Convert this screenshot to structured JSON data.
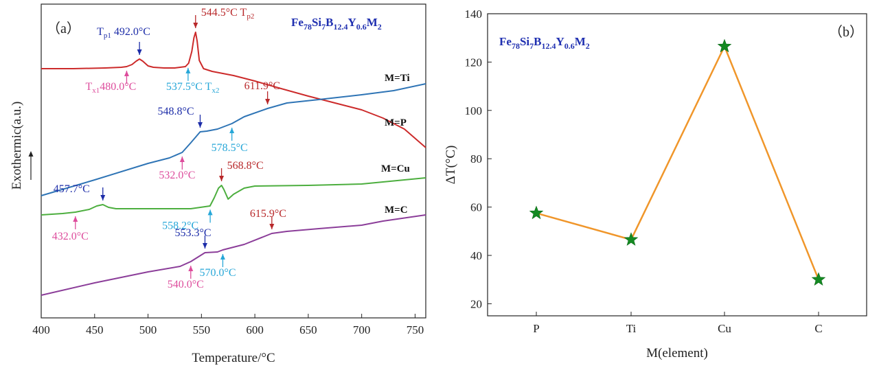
{
  "colors": {
    "red": "#cc2a2a",
    "blue": "#2e74b5",
    "green": "#4cae3e",
    "purple": "#8b3d99",
    "annot_dark_blue": "#1c2ca8",
    "annot_pink": "#dd4c9c",
    "annot_cyan": "#27a7d8",
    "annot_red": "#b8282a",
    "line_orange": "#f0962a",
    "star_green": "#148a22"
  },
  "chart_data": [
    {
      "type": "line",
      "panel_label": "（a）",
      "xlabel": "Temperature/°C",
      "ylabel": "Exothermic(a.u.)",
      "xlim": [
        400,
        760
      ],
      "xticks": [
        "400",
        "450",
        "500",
        "550",
        "600",
        "650",
        "700",
        "750"
      ],
      "formula": {
        "base": "Fe",
        "s1": "78",
        "e2": "Si",
        "s2": "7",
        "e3": "B",
        "s3": "12.4",
        "e4": "Y",
        "s4": "0.6",
        "e5": "M",
        "s5": "2"
      },
      "series": [
        {
          "name": "M=Ti",
          "color": "#cc2a2a",
          "x": [
            400,
            430,
            460,
            475,
            480,
            485,
            489,
            492,
            495,
            500,
            505,
            515,
            525,
            535,
            538,
            541,
            543,
            544.5,
            546,
            548,
            552,
            560,
            580,
            600,
            620,
            650,
            680,
            700,
            720,
            740,
            760
          ],
          "y": [
            100,
            100,
            99,
            98,
            97,
            94,
            89,
            86,
            89,
            96,
            98,
            99,
            99,
            97,
            92,
            75,
            55,
            47,
            60,
            88,
            100,
            104,
            110,
            118,
            127,
            140,
            152,
            160,
            172,
            188,
            215
          ]
        },
        {
          "name": "M=P",
          "color": "#2e74b5",
          "x": [
            400,
            450,
            500,
            520,
            532,
            540,
            548.8,
            555,
            565,
            578.5,
            590,
            611.9,
            630,
            660,
            700,
            730,
            760
          ],
          "y": [
            285,
            262,
            238,
            230,
            222,
            208,
            192,
            191,
            188,
            180,
            170,
            158,
            150,
            145,
            138,
            132,
            122
          ]
        },
        {
          "name": "M=Cu",
          "color": "#4cae3e",
          "x": [
            400,
            420,
            432,
            445,
            452,
            457.7,
            463,
            470,
            500,
            540,
            558,
            562,
            566,
            568.8,
            571,
            575,
            580,
            590,
            600,
            650,
            700,
            760
          ],
          "y": [
            313,
            311,
            309,
            305,
            300,
            298,
            302,
            304,
            304,
            304,
            300,
            288,
            274,
            270,
            276,
            290,
            283,
            274,
            271,
            270,
            268,
            259
          ]
        },
        {
          "name": "M=C",
          "color": "#8b3d99",
          "x": [
            400,
            450,
            500,
            530,
            540,
            553.3,
            565,
            570,
            590,
            615.9,
            630,
            660,
            700,
            720,
            760
          ],
          "y": [
            430,
            412,
            396,
            388,
            381,
            368,
            367,
            364,
            356,
            340,
            337,
            333,
            328,
            322,
            313
          ]
        }
      ],
      "annotations": [
        {
          "label": "T",
          "sub": "p1",
          "text": " 492.0°C",
          "x": 492,
          "curve": "M=Ti",
          "dir": "down",
          "color": "#1c2ca8"
        },
        {
          "label": "",
          "sub": "",
          "text": "544.5°C  T",
          "tail_sub": "p2",
          "x": 544.5,
          "curve": "M=Ti",
          "dir": "down",
          "color": "#b8282a"
        },
        {
          "label": "T",
          "sub": "x1",
          "text": "480.0°C",
          "x": 480,
          "curve": "M=Ti",
          "dir": "up",
          "color": "#dd4c9c"
        },
        {
          "label": "",
          "sub": "",
          "text": "537.5°C  T",
          "tail_sub": "x2",
          "x": 537.5,
          "curve": "M=Ti",
          "dir": "up",
          "color": "#27a7d8"
        },
        {
          "label": "",
          "sub": "",
          "text": "548.8°C",
          "x": 548.8,
          "curve": "M=P",
          "dir": "down",
          "color": "#1c2ca8"
        },
        {
          "label": "",
          "sub": "",
          "text": "611.9°C",
          "x": 611.9,
          "curve": "M=P",
          "dir": "down",
          "color": "#b8282a"
        },
        {
          "label": "",
          "sub": "",
          "text": "532.0°C",
          "x": 532,
          "curve": "M=P",
          "dir": "up",
          "color": "#dd4c9c"
        },
        {
          "label": "",
          "sub": "",
          "text": "578.5°C",
          "x": 578.5,
          "curve": "M=P",
          "dir": "up",
          "color": "#27a7d8"
        },
        {
          "label": "",
          "sub": "",
          "text": "457.7°C",
          "x": 457.7,
          "curve": "M=Cu",
          "dir": "down",
          "color": "#1c2ca8"
        },
        {
          "label": "",
          "sub": "",
          "text": "568.8°C",
          "x": 568.8,
          "curve": "M=Cu",
          "dir": "down",
          "color": "#b8282a"
        },
        {
          "label": "",
          "sub": "",
          "text": "432.0°C",
          "x": 432,
          "curve": "M=Cu",
          "dir": "up",
          "color": "#dd4c9c"
        },
        {
          "label": "",
          "sub": "",
          "text": "558.2°C",
          "x": 558.2,
          "curve": "M=Cu",
          "dir": "up",
          "color": "#27a7d8"
        },
        {
          "label": "",
          "sub": "",
          "text": "553.3°C",
          "x": 553.3,
          "curve": "M=C",
          "dir": "down",
          "color": "#1c2ca8"
        },
        {
          "label": "",
          "sub": "",
          "text": "615.9°C",
          "x": 615.9,
          "curve": "M=C",
          "dir": "down",
          "color": "#b8282a"
        },
        {
          "label": "",
          "sub": "",
          "text": "540.0°C",
          "x": 540,
          "curve": "M=C",
          "dir": "up",
          "color": "#dd4c9c"
        },
        {
          "label": "",
          "sub": "",
          "text": "570.0°C",
          "x": 570,
          "curve": "M=C",
          "dir": "up",
          "color": "#27a7d8"
        }
      ]
    },
    {
      "type": "line",
      "panel_label": "（b）",
      "xlabel": "M(element)",
      "ylabel": "ΔT(°C)",
      "categories": [
        "P",
        "Ti",
        "Cu",
        "C"
      ],
      "values": [
        57.5,
        46.5,
        126.5,
        30
      ],
      "ylim": [
        15,
        140
      ],
      "yticks": [
        "20",
        "40",
        "60",
        "80",
        "100",
        "120",
        "140"
      ],
      "formula": {
        "base": "Fe",
        "s1": "78",
        "e2": "Si",
        "s2": "7",
        "e3": "B",
        "s3": "12.4",
        "e4": "Y",
        "s4": "0.6",
        "e5": "M",
        "s5": "2"
      },
      "line_color": "#f0962a",
      "marker_color": "#148a22"
    }
  ]
}
